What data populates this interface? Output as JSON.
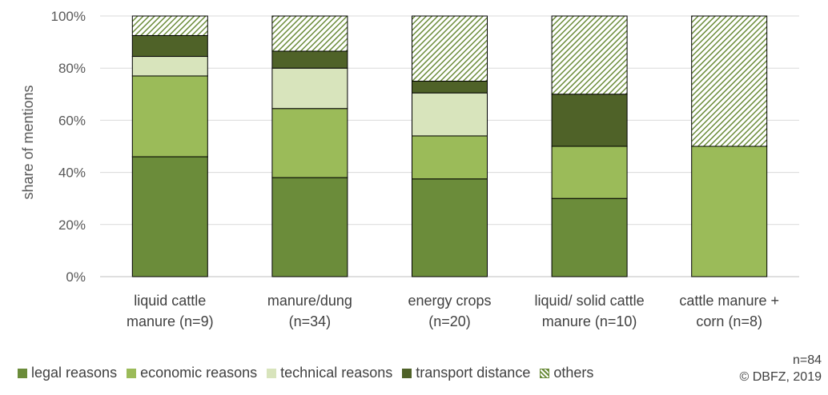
{
  "chart_data": {
    "type": "bar",
    "stacked": true,
    "ylabel": "share of mentions",
    "ylim": [
      0,
      100
    ],
    "yticks": [
      "0%",
      "20%",
      "40%",
      "60%",
      "80%",
      "100%"
    ],
    "grid": true,
    "legend_position": "bottom",
    "categories": [
      [
        "liquid cattle",
        "manure (n=9)"
      ],
      [
        "manure/dung",
        "(n=34)"
      ],
      [
        "energy crops",
        "(n=20)"
      ],
      [
        "liquid/ solid cattle",
        "manure (n=10)"
      ],
      [
        "cattle manure +",
        "corn (n=8)"
      ]
    ],
    "series": [
      {
        "name": "legal reasons",
        "color": "#6b8c3a",
        "values": [
          46,
          38,
          37.5,
          30,
          0
        ]
      },
      {
        "name": "economic reasons",
        "color": "#9bbb59",
        "values": [
          31,
          26.5,
          16.5,
          20,
          50
        ]
      },
      {
        "name": "technical reasons",
        "color": "#d8e4bc",
        "values": [
          7.5,
          15.5,
          16.5,
          0,
          0
        ]
      },
      {
        "name": "transport distance",
        "color": "#4f6228",
        "values": [
          8,
          6.5,
          4.5,
          20,
          0
        ]
      },
      {
        "name": "others",
        "color": "#6b8c3a",
        "pattern": "diagonal-hatch",
        "values": [
          7.5,
          13.5,
          25,
          30,
          50
        ]
      }
    ]
  },
  "footnote": {
    "n_total": "n=84",
    "copyright": "© DBFZ, 2019"
  }
}
